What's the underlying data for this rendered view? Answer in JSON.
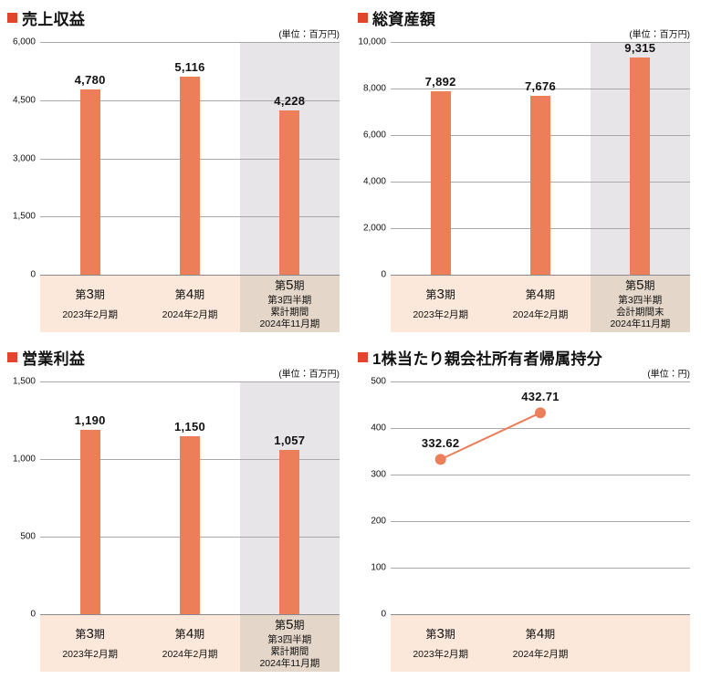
{
  "colors": {
    "bar": "#ec7e59",
    "bullet": "#e2452b",
    "grid": "#a9a9a9",
    "baseline": "#8a8a8a",
    "gray_column": "#e7e5e8",
    "band_peach": "#fbe8da",
    "band_tan": "#e4d6c8",
    "text": "#111111"
  },
  "chart_data": [
    {
      "type": "bar",
      "title": "売上収益",
      "unit": "(単位：百万円)",
      "values": [
        4780,
        5116,
        4228
      ],
      "value_labels": [
        "4,780",
        "5,116",
        "4,228"
      ],
      "categories": [
        [
          "第3期",
          "2023年2月期"
        ],
        [
          "第4期",
          "2024年2月期"
        ],
        [
          "第5期",
          "第3四半期",
          "累計期間",
          "2024年11月期"
        ]
      ],
      "ylim": [
        0,
        6000
      ],
      "yticks": [
        {
          "v": 0,
          "label": "0"
        },
        {
          "v": 1500,
          "label": "1,500"
        },
        {
          "v": 3000,
          "label": "3,000"
        },
        {
          "v": 4500,
          "label": "4,500"
        },
        {
          "v": 6000,
          "label": "6,000"
        }
      ],
      "slots": 3,
      "highlight_col": 2,
      "grid": true,
      "legend": null
    },
    {
      "type": "bar",
      "title": "総資産額",
      "unit": "(単位：百万円)",
      "values": [
        7892,
        7676,
        9315
      ],
      "value_labels": [
        "7,892",
        "7,676",
        "9,315"
      ],
      "categories": [
        [
          "第3期",
          "2023年2月期"
        ],
        [
          "第4期",
          "2024年2月期"
        ],
        [
          "第5期",
          "第3四半期",
          "会計期間末",
          "2024年11月期"
        ]
      ],
      "ylim": [
        0,
        10000
      ],
      "yticks": [
        {
          "v": 0,
          "label": "0"
        },
        {
          "v": 2000,
          "label": "2,000"
        },
        {
          "v": 4000,
          "label": "4,000"
        },
        {
          "v": 6000,
          "label": "6,000"
        },
        {
          "v": 8000,
          "label": "8,000"
        },
        {
          "v": 10000,
          "label": "10,000"
        }
      ],
      "slots": 3,
      "highlight_col": 2,
      "grid": true,
      "legend": null
    },
    {
      "type": "bar",
      "title": "営業利益",
      "unit": "(単位：百万円)",
      "values": [
        1190,
        1150,
        1057
      ],
      "value_labels": [
        "1,190",
        "1,150",
        "1,057"
      ],
      "categories": [
        [
          "第3期",
          "2023年2月期"
        ],
        [
          "第4期",
          "2024年2月期"
        ],
        [
          "第5期",
          "第3四半期",
          "累計期間",
          "2024年11月期"
        ]
      ],
      "ylim": [
        0,
        1500
      ],
      "yticks": [
        {
          "v": 0,
          "label": "0"
        },
        {
          "v": 500,
          "label": "500"
        },
        {
          "v": 1000,
          "label": "1,000"
        },
        {
          "v": 1500,
          "label": "1,500"
        }
      ],
      "slots": 3,
      "highlight_col": 2,
      "grid": true,
      "legend": null
    },
    {
      "type": "line",
      "title": "1株当たり親会社所有者帰属持分",
      "unit": "(単位：円)",
      "values": [
        332.62,
        432.71
      ],
      "value_labels": [
        "332.62",
        "432.71"
      ],
      "categories": [
        [
          "第3期",
          "2023年2月期"
        ],
        [
          "第4期",
          "2024年2月期"
        ]
      ],
      "ylim": [
        0,
        500
      ],
      "yticks": [
        {
          "v": 0,
          "label": "0"
        },
        {
          "v": 100,
          "label": "100"
        },
        {
          "v": 200,
          "label": "200"
        },
        {
          "v": 300,
          "label": "300"
        },
        {
          "v": 400,
          "label": "400"
        },
        {
          "v": 500,
          "label": "500"
        }
      ],
      "slots": 3,
      "highlight_col": null,
      "grid": true,
      "legend": null
    }
  ]
}
